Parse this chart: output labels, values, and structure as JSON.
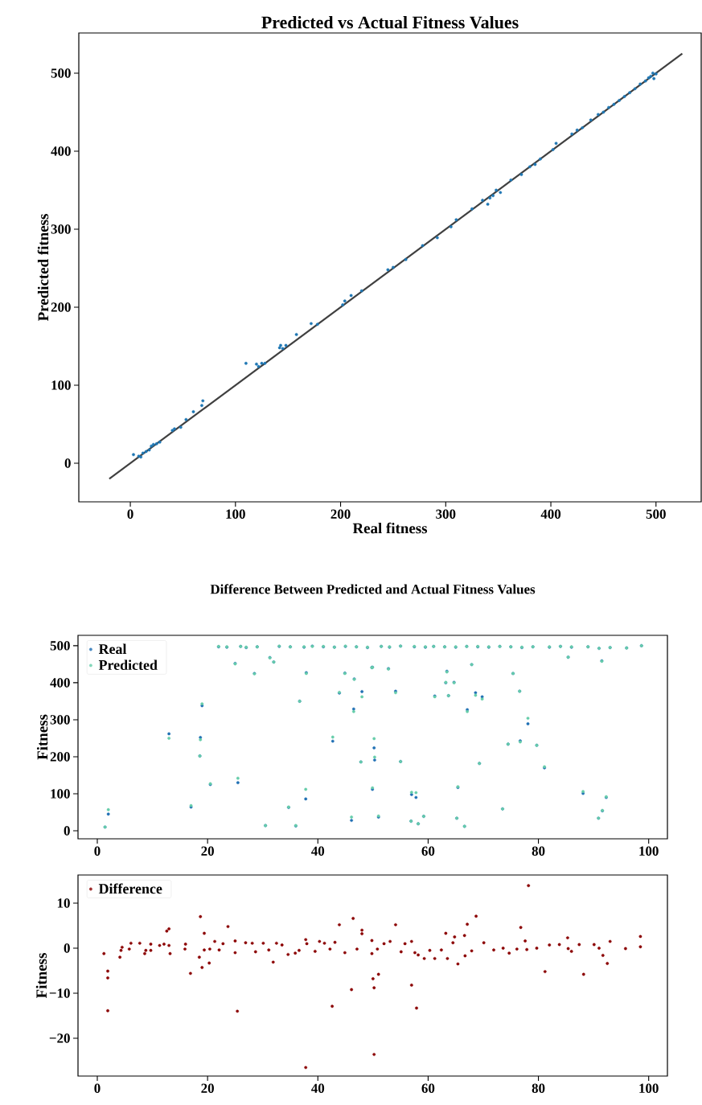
{
  "chart_data": [
    {
      "type": "scatter",
      "title": "Predicted vs Actual Fitness Values",
      "xlabel": "Real fitness",
      "ylabel": "Predicted fitness",
      "marker": "circle",
      "xlim": [
        -49,
        543
      ],
      "ylim": [
        -49.5,
        551.5
      ],
      "xticks": [
        0,
        100,
        200,
        300,
        400,
        500
      ],
      "yticks": [
        0,
        100,
        200,
        300,
        400,
        500
      ],
      "series": [
        {
          "type": "scatter",
          "color": "#1f77b4",
          "x": [
            3,
            8,
            10,
            12,
            15,
            18,
            20,
            22,
            25,
            28,
            40,
            42,
            48,
            53,
            60,
            68,
            69,
            110,
            120,
            122,
            125,
            128,
            142,
            143,
            145,
            148,
            158,
            172,
            178,
            202,
            204,
            210,
            220,
            245,
            250,
            262,
            278,
            292,
            305,
            310,
            325,
            335,
            340,
            342,
            345,
            348,
            352,
            362,
            372,
            380,
            385,
            390,
            402,
            405,
            420,
            425,
            430,
            438,
            445,
            450,
            455,
            460,
            465,
            470,
            475,
            480,
            485,
            490,
            493,
            495,
            497,
            498,
            500
          ],
          "values": [
            11,
            9,
            8,
            13,
            15,
            17,
            22,
            24,
            25,
            27,
            42,
            44,
            46,
            56,
            66,
            74,
            80,
            128,
            127,
            124,
            128,
            128,
            148,
            151,
            147,
            151,
            165,
            179,
            178,
            203,
            208,
            215,
            221,
            248,
            251,
            261,
            279,
            289,
            303,
            312,
            326,
            337,
            332,
            340,
            343,
            350,
            347,
            363,
            370,
            380,
            383,
            390,
            402,
            410,
            422,
            427,
            430,
            440,
            447,
            450,
            456,
            460,
            465,
            470,
            475,
            480,
            486,
            490,
            494,
            496,
            500,
            493,
            499
          ]
        },
        {
          "type": "line",
          "marker": "none",
          "color": "#404040",
          "x": [
            -20,
            525
          ],
          "values": [
            -20,
            525
          ]
        }
      ]
    },
    {
      "type": "scatter",
      "title": "Difference Between Predicted and Actual Fitness Values",
      "ylabel": "Fitness",
      "marker": "circle",
      "legend": "top left",
      "xlim": [
        -3.5,
        103.4
      ],
      "ylim": [
        -21.7,
        528
      ],
      "xticks": [
        0,
        20,
        40,
        60,
        80,
        100
      ],
      "yticks": [
        0,
        100,
        200,
        300,
        400,
        500
      ],
      "series": [
        {
          "name": "Real",
          "color": "#1f6fb4",
          "x": [
            1.4,
            2.0,
            13.0,
            17.0,
            18.6,
            18.7,
            19.0,
            20.5,
            25.5,
            25.0,
            28.5,
            30.5,
            31.3,
            32.0,
            34.7,
            36.0,
            36.7,
            37.8,
            37.9,
            42.7,
            43.9,
            44.9,
            46.1,
            46.5,
            46.6,
            47.8,
            48.0,
            49.8,
            49.9,
            49.9,
            50.2,
            50.3,
            51.0,
            52.8,
            54.1,
            55.0,
            56.9,
            57.0,
            57.8,
            58.2,
            59.2,
            61.2,
            63.2,
            63.4,
            63.7,
            64.7,
            65.2,
            65.4,
            66.6,
            67.1,
            67.9,
            68.6,
            69.3,
            69.8,
            73.5,
            74.5,
            75.4,
            76.6,
            76.7,
            78.1,
            79.7,
            81.1,
            85.4,
            88.1,
            90.9,
            91.5,
            91.6,
            92.3,
            22,
            23.5,
            26,
            27,
            29,
            33,
            35,
            37.5,
            39,
            41,
            43,
            45,
            47,
            49,
            51.5,
            53,
            55,
            57.5,
            59.5,
            61,
            63,
            65,
            67,
            69,
            71,
            73,
            75,
            77,
            79,
            82,
            84,
            86,
            89,
            91,
            93,
            96,
            98.7
          ],
          "values": [
            10,
            45,
            262,
            64,
            202,
            252,
            338,
            125,
            130,
            452,
            425,
            14,
            468,
            456,
            63,
            13,
            350,
            86,
            427,
            242,
            372,
            426,
            28,
            329,
            410,
            186,
            376,
            441,
            442,
            112,
            224,
            191,
            37,
            438,
            377,
            187,
            26,
            98,
            90,
            19,
            39,
            364,
            400,
            431,
            365,
            401,
            34,
            117,
            12,
            327,
            449,
            373,
            182,
            362,
            59,
            234,
            425,
            377,
            243,
            289,
            231,
            170,
            469,
            101,
            34,
            459,
            54,
            90,
            497,
            496,
            498,
            495,
            497,
            498,
            497,
            496,
            499,
            497,
            496,
            498,
            497,
            495,
            498,
            496,
            499,
            497,
            496,
            498,
            497,
            496,
            498,
            497,
            496,
            498,
            497,
            495,
            497,
            496,
            498,
            496,
            497,
            493,
            495,
            494,
            500
          ]
        },
        {
          "name": "Predicted",
          "color": "#66cdaa",
          "x": [
            1.4,
            2.0,
            13.0,
            17.0,
            18.6,
            18.7,
            19.0,
            20.5,
            25.5,
            25.0,
            28.5,
            30.5,
            31.3,
            32.0,
            34.7,
            36.0,
            36.7,
            37.8,
            37.9,
            42.7,
            43.9,
            44.9,
            46.1,
            46.5,
            46.6,
            47.8,
            48.0,
            49.8,
            49.9,
            49.9,
            50.2,
            50.3,
            51.0,
            52.8,
            54.1,
            55.0,
            56.9,
            57.0,
            57.8,
            58.2,
            59.2,
            61.2,
            63.2,
            63.4,
            63.7,
            64.7,
            65.2,
            65.4,
            66.6,
            67.1,
            67.9,
            68.6,
            69.3,
            69.8,
            73.5,
            74.5,
            75.4,
            76.6,
            76.7,
            78.1,
            79.7,
            81.1,
            85.4,
            88.1,
            90.9,
            91.5,
            91.6,
            92.3,
            22,
            23.5,
            26,
            27,
            29,
            33,
            35,
            37.5,
            39,
            41,
            43,
            45,
            47,
            49,
            51.5,
            53,
            55,
            57.5,
            59.5,
            61,
            63,
            65,
            67,
            69,
            71,
            73,
            75,
            77,
            79,
            82,
            84,
            86,
            89,
            91,
            93,
            96,
            98.7
          ],
          "values": [
            10,
            57,
            250,
            68,
            202,
            246,
            343,
            127,
            142,
            451,
            424,
            14,
            467,
            456,
            64,
            14,
            350,
            112,
            425,
            253,
            374,
            425,
            37,
            322,
            409,
            186,
            362,
            441,
            441,
            116,
            249,
            199,
            40,
            437,
            373,
            187,
            26,
            104,
            103,
            19,
            39,
            362,
            401,
            429,
            365,
            400,
            34,
            119,
            12,
            322,
            449,
            366,
            182,
            356,
            59,
            234,
            425,
            377,
            240,
            304,
            231,
            173,
            469,
            106,
            34,
            458,
            55,
            92,
            498,
            497,
            498,
            496,
            497,
            499,
            497,
            497,
            498,
            498,
            496,
            499,
            497,
            496,
            498,
            497,
            499,
            498,
            497,
            498,
            497,
            497,
            498,
            498,
            497,
            498,
            497,
            496,
            497,
            497,
            498,
            497,
            497,
            493,
            495,
            494,
            500
          ]
        }
      ]
    },
    {
      "type": "scatter",
      "ylabel": "Fitness",
      "marker": "circle",
      "legend": "top left",
      "xlim": [
        -3.5,
        103.4
      ],
      "ylim": [
        -28.4,
        16.25
      ],
      "xticks": [
        0,
        20,
        40,
        60,
        80,
        100
      ],
      "yticks": [
        {
          "value": -20,
          "label": "−20"
        },
        {
          "value": -10,
          "label": "−10"
        },
        0,
        10
      ],
      "series": [
        {
          "name": "Difference",
          "color": "#8b0000",
          "x": [
            1.2,
            1.9,
            1.9,
            1.9,
            4.1,
            4.3,
            4.5,
            5.8,
            6.1,
            7.7,
            8.6,
            8.8,
            9.7,
            9.7,
            11.3,
            12.1,
            12.6,
            13.0,
            13.0,
            13.2,
            16.0,
            15.9,
            16.9,
            18.7,
            18.5,
            19.0,
            19.4,
            19.4,
            20.3,
            20.4,
            21.3,
            22.1,
            22.8,
            23.7,
            25.0,
            25.0,
            25.4,
            26.9,
            28.1,
            28.7,
            30.1,
            31.1,
            31.9,
            32.5,
            33.5,
            34.6,
            35.9,
            36.6,
            37.8,
            37.8,
            38.0,
            39.5,
            40.3,
            41.2,
            42.2,
            42.6,
            43.1,
            43.9,
            44.9,
            46.1,
            46.4,
            47.1,
            48.0,
            48.0,
            49.8,
            49.8,
            50.0,
            50.2,
            50.2,
            51.0,
            50.8,
            52.0,
            53.1,
            54.1,
            55.1,
            55.8,
            57.0,
            57.0,
            57.9,
            57.6,
            58.2,
            59.3,
            60.3,
            61.2,
            62.4,
            63.2,
            63.5,
            64.5,
            64.8,
            65.4,
            66.6,
            66.7,
            67.1,
            68.7,
            67.9,
            70.1,
            71.9,
            73.6,
            74.7,
            76.8,
            76.1,
            78.2,
            77.6,
            77.9,
            79.7,
            81.2,
            82.0,
            83.8,
            85.3,
            85.4,
            86.0,
            87.4,
            88.2,
            90.1,
            91.0,
            91.7,
            92.5,
            93.0,
            95.8,
            98.5,
            98.5
          ],
          "values": [
            -1.2,
            -5.1,
            -6.6,
            -13.9,
            -2.0,
            -0.5,
            0.2,
            -0.2,
            1.1,
            1.1,
            -1.2,
            -0.5,
            0.9,
            -0.5,
            0.6,
            0.9,
            3.8,
            4.3,
            0.6,
            -1.2,
            0.9,
            -0.2,
            -5.6,
            7.0,
            -2.0,
            -4.3,
            3.3,
            -0.4,
            -3.3,
            -0.2,
            1.5,
            -0.4,
            1.0,
            4.8,
            1.6,
            -1.0,
            -14.0,
            1.2,
            1.1,
            -0.8,
            1.1,
            -0.4,
            -3.1,
            1.1,
            0.7,
            -1.4,
            -1.1,
            -0.5,
            1.9,
            -26.5,
            1.0,
            -0.7,
            1.5,
            1.1,
            -0.2,
            -12.9,
            1.3,
            5.2,
            -1.0,
            -9.2,
            6.6,
            -0.2,
            4.0,
            3.2,
            1.7,
            -1.2,
            -6.8,
            -8.8,
            -23.6,
            -5.8,
            -0.2,
            1.0,
            1.5,
            5.2,
            -0.8,
            1.0,
            1.5,
            -8.2,
            -13.3,
            -1.0,
            -1.5,
            -2.3,
            -0.5,
            -2.3,
            -0.4,
            3.3,
            -2.3,
            1.2,
            2.5,
            -3.5,
            2.8,
            -1.7,
            5.3,
            7.1,
            -0.6,
            1.2,
            -0.4,
            0.0,
            -1.1,
            4.6,
            -0.2,
            13.9,
            1.6,
            -0.3,
            0.0,
            -5.2,
            0.7,
            0.8,
            2.3,
            -0.1,
            -0.7,
            0.8,
            -5.8,
            0.8,
            0.0,
            -1.6,
            -3.4,
            1.5,
            -0.1,
            2.6,
            0.3
          ]
        }
      ]
    }
  ]
}
